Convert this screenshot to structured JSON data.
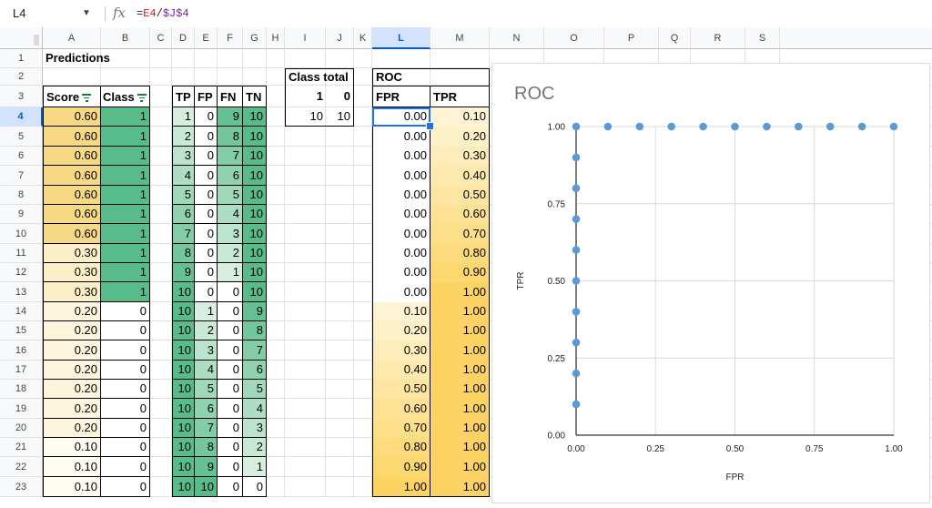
{
  "formula_bar": {
    "name_box": "L4",
    "fx_symbol": "fx",
    "formula": [
      "=",
      "E4",
      "/",
      "$J$4"
    ]
  },
  "columns": [
    "A",
    "B",
    "C",
    "D",
    "E",
    "F",
    "G",
    "H",
    "I",
    "J",
    "K",
    "L",
    "M",
    "N",
    "O",
    "P",
    "Q",
    "R",
    "S"
  ],
  "selected_column": "L",
  "rows": [
    1,
    2,
    3,
    4,
    5,
    6,
    7,
    8,
    9,
    10,
    11,
    12,
    13,
    14,
    15,
    16,
    17,
    18,
    19,
    20,
    21,
    22,
    23
  ],
  "selected_row": 4,
  "predictions": {
    "title": "Predictions",
    "headers": [
      "Score",
      "Class"
    ],
    "scores": [
      "0.60",
      "0.60",
      "0.60",
      "0.60",
      "0.60",
      "0.60",
      "0.60",
      "0.30",
      "0.30",
      "0.30",
      "0.20",
      "0.20",
      "0.20",
      "0.20",
      "0.20",
      "0.20",
      "0.20",
      "0.10",
      "0.10",
      "0.10"
    ],
    "classes": [
      "1",
      "1",
      "1",
      "1",
      "1",
      "1",
      "1",
      "1",
      "1",
      "1",
      "0",
      "0",
      "0",
      "0",
      "0",
      "0",
      "0",
      "0",
      "0",
      "0"
    ]
  },
  "confusion": {
    "headers": [
      "TP",
      "FP",
      "FN",
      "TN"
    ],
    "rows": [
      [
        "1",
        "0",
        "9",
        "10"
      ],
      [
        "2",
        "0",
        "8",
        "10"
      ],
      [
        "3",
        "0",
        "7",
        "10"
      ],
      [
        "4",
        "0",
        "6",
        "10"
      ],
      [
        "5",
        "0",
        "5",
        "10"
      ],
      [
        "6",
        "0",
        "4",
        "10"
      ],
      [
        "7",
        "0",
        "3",
        "10"
      ],
      [
        "8",
        "0",
        "2",
        "10"
      ],
      [
        "9",
        "0",
        "1",
        "10"
      ],
      [
        "10",
        "0",
        "0",
        "10"
      ],
      [
        "10",
        "1",
        "0",
        "9"
      ],
      [
        "10",
        "2",
        "0",
        "8"
      ],
      [
        "10",
        "3",
        "0",
        "7"
      ],
      [
        "10",
        "4",
        "0",
        "6"
      ],
      [
        "10",
        "5",
        "0",
        "5"
      ],
      [
        "10",
        "6",
        "0",
        "4"
      ],
      [
        "10",
        "7",
        "0",
        "3"
      ],
      [
        "10",
        "8",
        "0",
        "2"
      ],
      [
        "10",
        "9",
        "0",
        "1"
      ],
      [
        "10",
        "10",
        "0",
        "0"
      ]
    ]
  },
  "class_total": {
    "title": "Class total",
    "headers": [
      "1",
      "0"
    ],
    "values": [
      "10",
      "10"
    ]
  },
  "roc_table": {
    "title": "ROC",
    "headers": [
      "FPR",
      "TPR"
    ],
    "fpr": [
      "0.00",
      "0.00",
      "0.00",
      "0.00",
      "0.00",
      "0.00",
      "0.00",
      "0.00",
      "0.00",
      "0.00",
      "0.10",
      "0.20",
      "0.30",
      "0.40",
      "0.50",
      "0.60",
      "0.70",
      "0.80",
      "0.90",
      "1.00"
    ],
    "tpr": [
      "0.10",
      "0.20",
      "0.30",
      "0.40",
      "0.50",
      "0.60",
      "0.70",
      "0.80",
      "0.90",
      "1.00",
      "1.00",
      "1.00",
      "1.00",
      "1.00",
      "1.00",
      "1.00",
      "1.00",
      "1.00",
      "1.00",
      "1.00"
    ]
  },
  "colors": {
    "score_high": "#f7d884",
    "score_low": "#fffcf3",
    "green_high": "#57bb8a",
    "green_low": "#e6f4ea",
    "tpr_high": "#fdd363",
    "tpr_low": "#fef7e0",
    "point": "#5b9bd5",
    "select": "#1a73e8"
  },
  "chart_data": {
    "type": "scatter",
    "title": "ROC",
    "xlabel": "FPR",
    "ylabel": "TPR",
    "xlim": [
      0,
      1
    ],
    "ylim": [
      0,
      1
    ],
    "xticks": [
      "0.00",
      "0.25",
      "0.50",
      "0.75",
      "1.00"
    ],
    "yticks": [
      "0.00",
      "0.25",
      "0.50",
      "0.75",
      "1.00"
    ],
    "grid": true,
    "x": [
      0,
      0,
      0,
      0,
      0,
      0,
      0,
      0,
      0,
      0,
      0.1,
      0.2,
      0.3,
      0.4,
      0.5,
      0.6,
      0.7,
      0.8,
      0.9,
      1.0
    ],
    "y": [
      0.1,
      0.2,
      0.3,
      0.4,
      0.5,
      0.6,
      0.7,
      0.8,
      0.9,
      1.0,
      1.0,
      1.0,
      1.0,
      1.0,
      1.0,
      1.0,
      1.0,
      1.0,
      1.0,
      1.0
    ]
  }
}
